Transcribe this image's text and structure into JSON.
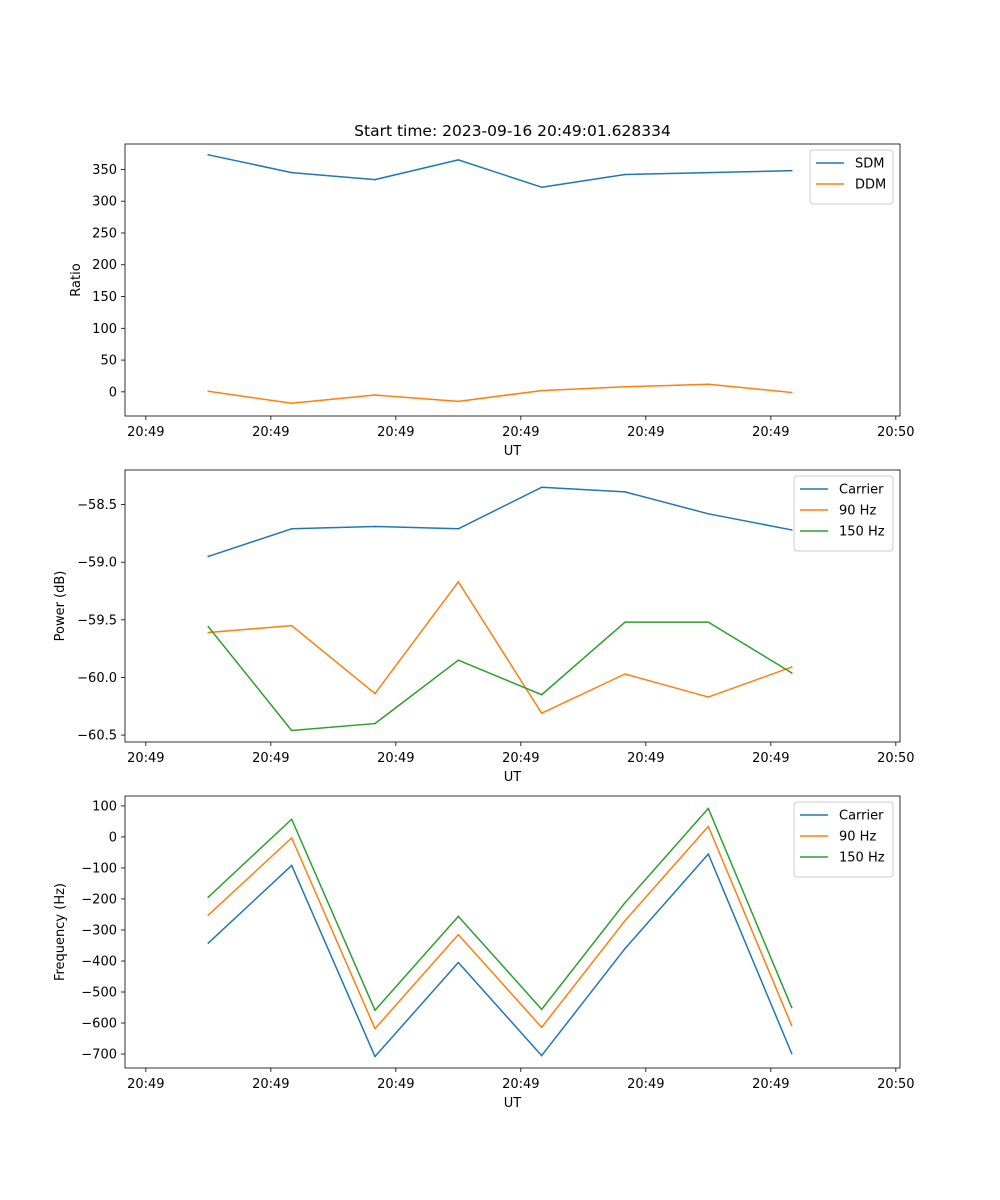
{
  "chart_data": [
    {
      "type": "line",
      "title": "Start time: 2023-09-16 20:49:01.628334",
      "xlabel": "UT",
      "ylabel": "Ratio",
      "x": [
        1.0,
        2.0,
        3.0,
        4.0,
        5.0,
        6.0,
        7.0,
        8.0
      ],
      "xlim": [
        0,
        9.3
      ],
      "xticks": [
        0.25,
        1.75,
        3.25,
        4.75,
        6.25,
        7.75,
        9.25
      ],
      "xtick_labels": [
        "20:49",
        "20:49",
        "20:49",
        "20:49",
        "20:49",
        "20:49",
        "20:50"
      ],
      "ylim": [
        -38,
        390
      ],
      "yticks": [
        0,
        50,
        100,
        150,
        200,
        250,
        300,
        350
      ],
      "ytick_labels": [
        "0",
        "50",
        "100",
        "150",
        "200",
        "250",
        "300",
        "350"
      ],
      "series": [
        {
          "name": "SDM",
          "color": "#1f77b4",
          "values": [
            373,
            345,
            334,
            365,
            322,
            342,
            345,
            348
          ]
        },
        {
          "name": "DDM",
          "color": "#ff7f0e",
          "values": [
            1,
            -18,
            -5,
            -15,
            2,
            8,
            12,
            -1
          ]
        }
      ],
      "legend": "top-right"
    },
    {
      "type": "line",
      "title": "",
      "xlabel": "UT",
      "ylabel": "Power (dB)",
      "x": [
        1.0,
        2.0,
        3.0,
        4.0,
        5.0,
        6.0,
        7.0,
        8.0
      ],
      "xlim": [
        0,
        9.3
      ],
      "xticks": [
        0.25,
        1.75,
        3.25,
        4.75,
        6.25,
        7.75,
        9.25
      ],
      "xtick_labels": [
        "20:49",
        "20:49",
        "20:49",
        "20:49",
        "20:49",
        "20:49",
        "20:50"
      ],
      "ylim": [
        -60.56,
        -58.2
      ],
      "yticks": [
        -60.5,
        -60.0,
        -59.5,
        -59.0,
        -58.5
      ],
      "ytick_labels": [
        "−60.5",
        "−60.0",
        "−59.5",
        "−59.0",
        "−58.5"
      ],
      "series": [
        {
          "name": "Carrier",
          "color": "#1f77b4",
          "values": [
            -58.95,
            -58.71,
            -58.69,
            -58.71,
            -58.35,
            -58.39,
            -58.58,
            -58.72
          ]
        },
        {
          "name": "90 Hz",
          "color": "#ff7f0e",
          "values": [
            -59.61,
            -59.55,
            -60.14,
            -59.17,
            -60.31,
            -59.97,
            -60.17,
            -59.91
          ]
        },
        {
          "name": "150 Hz",
          "color": "#2ca02c",
          "values": [
            -59.56,
            -60.46,
            -60.4,
            -59.85,
            -60.15,
            -59.52,
            -59.52,
            -59.96
          ]
        }
      ],
      "legend": "top-right"
    },
    {
      "type": "line",
      "title": "",
      "xlabel": "UT",
      "ylabel": "Frequency (Hz)",
      "x": [
        1.0,
        2.0,
        3.0,
        4.0,
        5.0,
        6.0,
        7.0,
        8.0
      ],
      "xlim": [
        0,
        9.3
      ],
      "xticks": [
        0.25,
        1.75,
        3.25,
        4.75,
        6.25,
        7.75,
        9.25
      ],
      "xtick_labels": [
        "20:49",
        "20:49",
        "20:49",
        "20:49",
        "20:49",
        "20:49",
        "20:50"
      ],
      "ylim": [
        -745,
        132
      ],
      "yticks": [
        -700,
        -600,
        -500,
        -400,
        -300,
        -200,
        -100,
        0,
        100
      ],
      "ytick_labels": [
        "−700",
        "−600",
        "−500",
        "−400",
        "−300",
        "−200",
        "−100",
        "0",
        "100"
      ],
      "series": [
        {
          "name": "Carrier",
          "color": "#1f77b4",
          "values": [
            -342,
            -92,
            -708,
            -405,
            -705,
            -360,
            -55,
            -698
          ]
        },
        {
          "name": "90 Hz",
          "color": "#ff7f0e",
          "values": [
            -252,
            -3,
            -618,
            -315,
            -614,
            -270,
            34,
            -608
          ]
        },
        {
          "name": "150 Hz",
          "color": "#2ca02c",
          "values": [
            -194,
            57,
            -559,
            -256,
            -556,
            -212,
            92,
            -550
          ]
        }
      ],
      "legend": "top-right"
    }
  ]
}
